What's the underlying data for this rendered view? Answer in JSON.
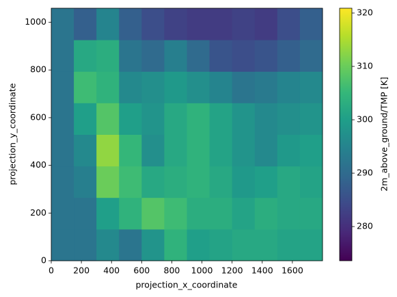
{
  "chart_data": {
    "type": "heatmap",
    "x_label": "projection_x_coordinate",
    "y_label": "projection_y_coordinate",
    "colorbar_label": "2m_above_ground/TMP [K]",
    "x": [
      75,
      225,
      375,
      525,
      675,
      825,
      975,
      1125,
      1275,
      1425,
      1575,
      1725
    ],
    "y": [
      66,
      199,
      331,
      463,
      596,
      728,
      860,
      993
    ],
    "z": [
      [
        292,
        292,
        296,
        292,
        298,
        304,
        300,
        301,
        302,
        302,
        301,
        301
      ],
      [
        292,
        292,
        300,
        304,
        308,
        306,
        303,
        303,
        301,
        303,
        302,
        302
      ],
      [
        292,
        294,
        310,
        306,
        302,
        303,
        304,
        302,
        299,
        300,
        302,
        301
      ],
      [
        292,
        296,
        313,
        305,
        297,
        302,
        304,
        301,
        298,
        296,
        299,
        300
      ],
      [
        292,
        300,
        308,
        300,
        298,
        302,
        304,
        301,
        298,
        296,
        297,
        298
      ],
      [
        292,
        306,
        304,
        296,
        297,
        299,
        297,
        295,
        292,
        293,
        295,
        296
      ],
      [
        292,
        302,
        303,
        292,
        290,
        294,
        290,
        286,
        285,
        286,
        288,
        290
      ],
      [
        292,
        288,
        295,
        288,
        285,
        283,
        282,
        282,
        283,
        282,
        285,
        288
      ]
    ],
    "xlim": [
      0,
      1800
    ],
    "ylim": [
      0,
      1059
    ],
    "xticks": [
      0,
      200,
      400,
      600,
      800,
      1000,
      1200,
      1400,
      1600
    ],
    "yticks": [
      0,
      200,
      400,
      600,
      800,
      1000
    ],
    "clim": [
      273.6,
      320.9
    ],
    "cticks": [
      280,
      290,
      300,
      310,
      320
    ],
    "colormap": [
      "#440154",
      "#482878",
      "#3e4989",
      "#31688e",
      "#26828e",
      "#1f9e89",
      "#35b779",
      "#6ece58",
      "#b5de2b",
      "#fde725"
    ]
  }
}
